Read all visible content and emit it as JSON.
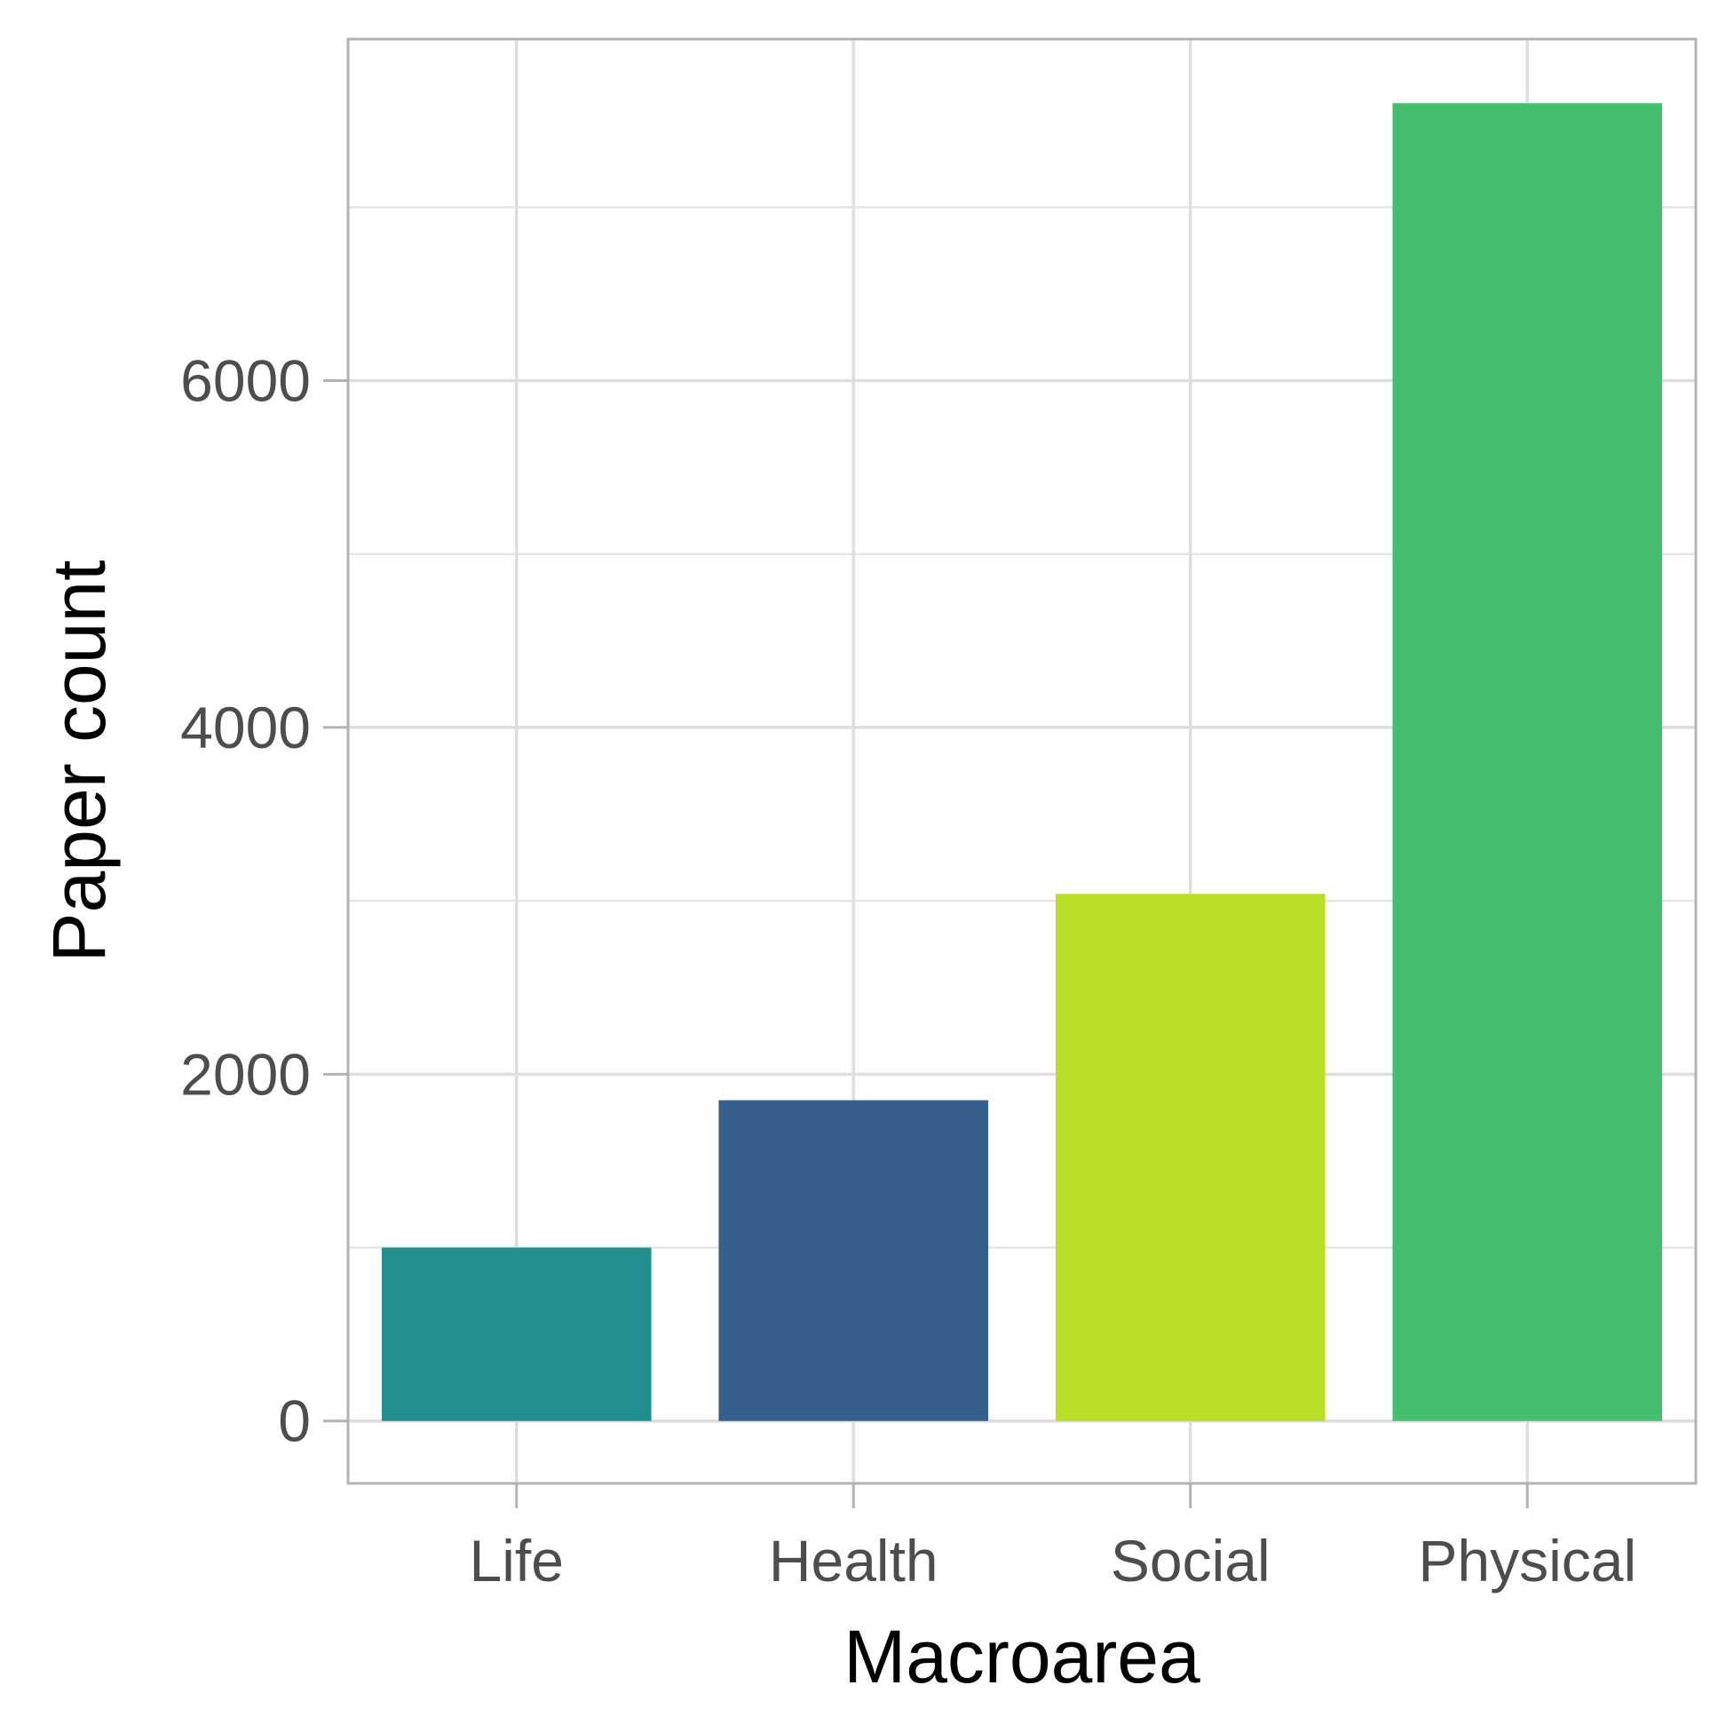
{
  "chart_data": {
    "type": "bar",
    "categories": [
      "Life",
      "Health",
      "Social",
      "Physical"
    ],
    "values": [
      1000,
      1850,
      3040,
      7600
    ],
    "colors": [
      "#21908C",
      "#36608C",
      "#BBDF27",
      "#44BF70"
    ],
    "xlabel": "Macroarea",
    "ylabel": "Paper count",
    "yticks": [
      0,
      2000,
      4000,
      6000
    ],
    "ytick_labels": [
      "0",
      "2000",
      "4000",
      "6000"
    ],
    "ylim": [
      -360,
      7970
    ],
    "grid": true,
    "legend": "none"
  }
}
